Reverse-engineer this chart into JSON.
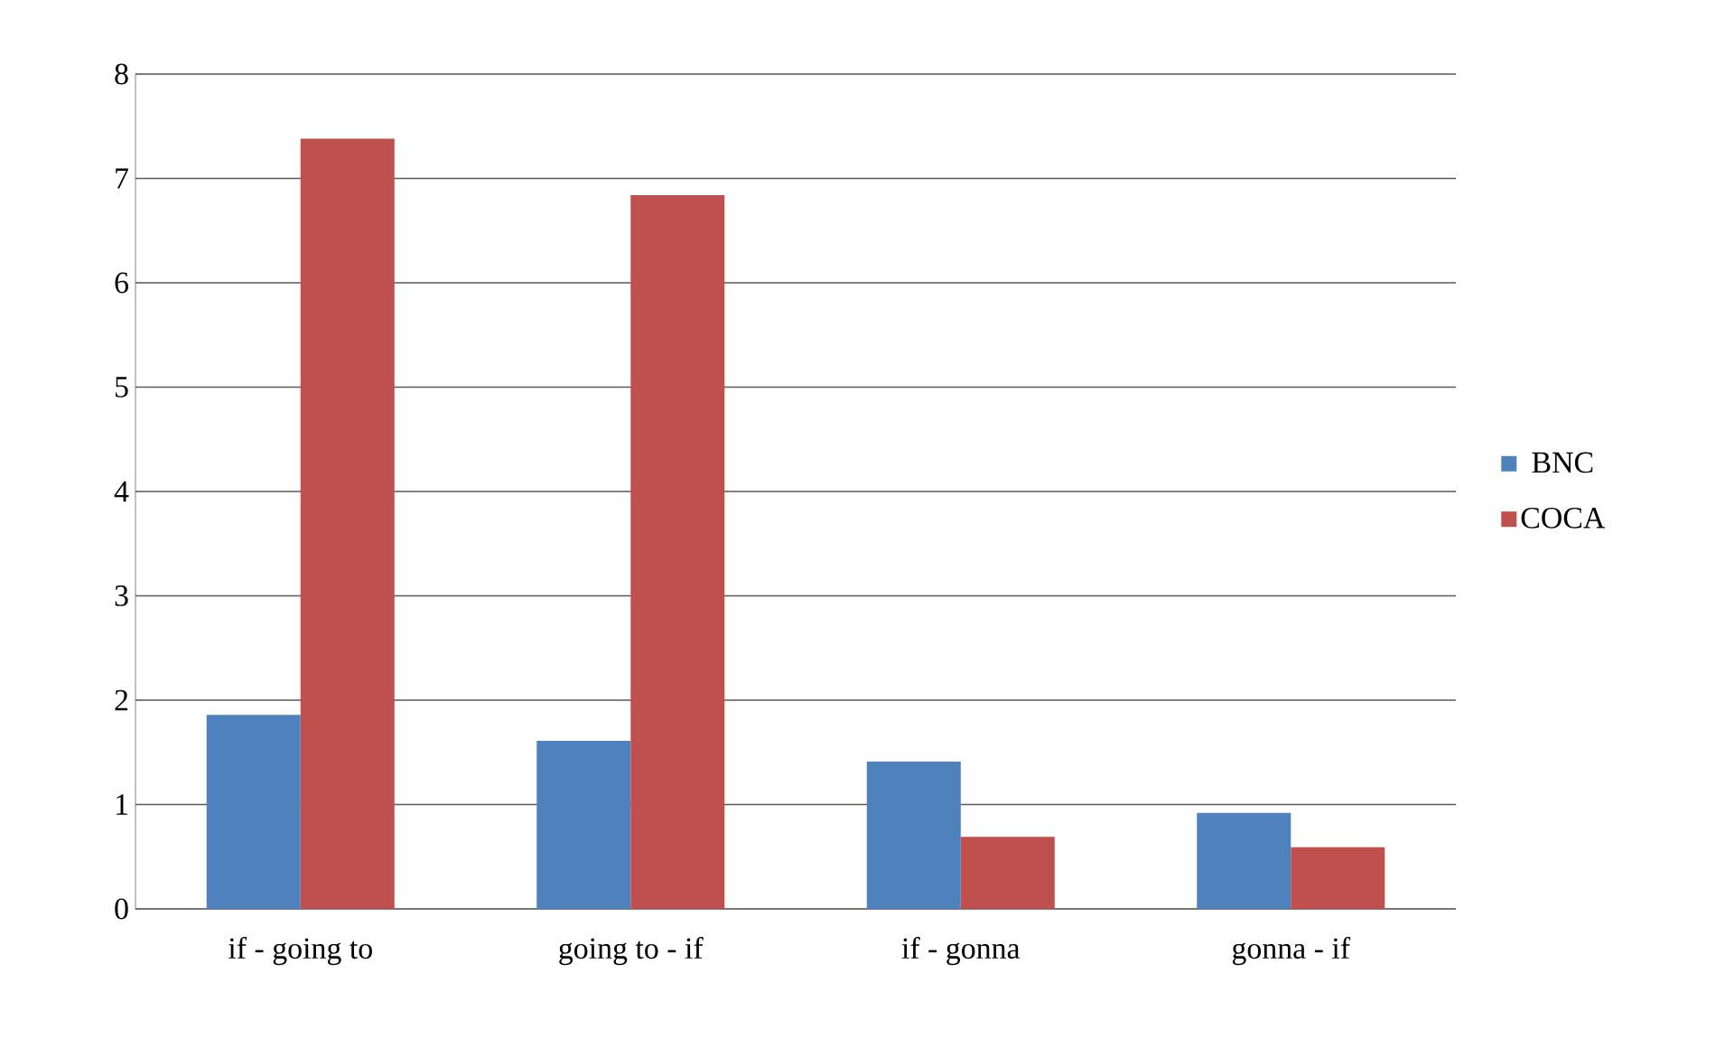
{
  "chart_data": {
    "type": "bar",
    "categories": [
      "if - going to",
      "going to - if",
      "if - gonna",
      "gonna - if"
    ],
    "series": [
      {
        "name": "BNC",
        "color": "#4f81bd",
        "values": [
          1.86,
          1.61,
          1.41,
          0.92
        ]
      },
      {
        "name": "COCA",
        "color": "#c0504d",
        "values": [
          7.38,
          6.84,
          0.69,
          0.59
        ]
      }
    ],
    "ylim": [
      0,
      8
    ],
    "yticks": [
      0,
      1,
      2,
      3,
      4,
      5,
      6,
      7,
      8
    ],
    "grid": "y",
    "legend": "right"
  }
}
